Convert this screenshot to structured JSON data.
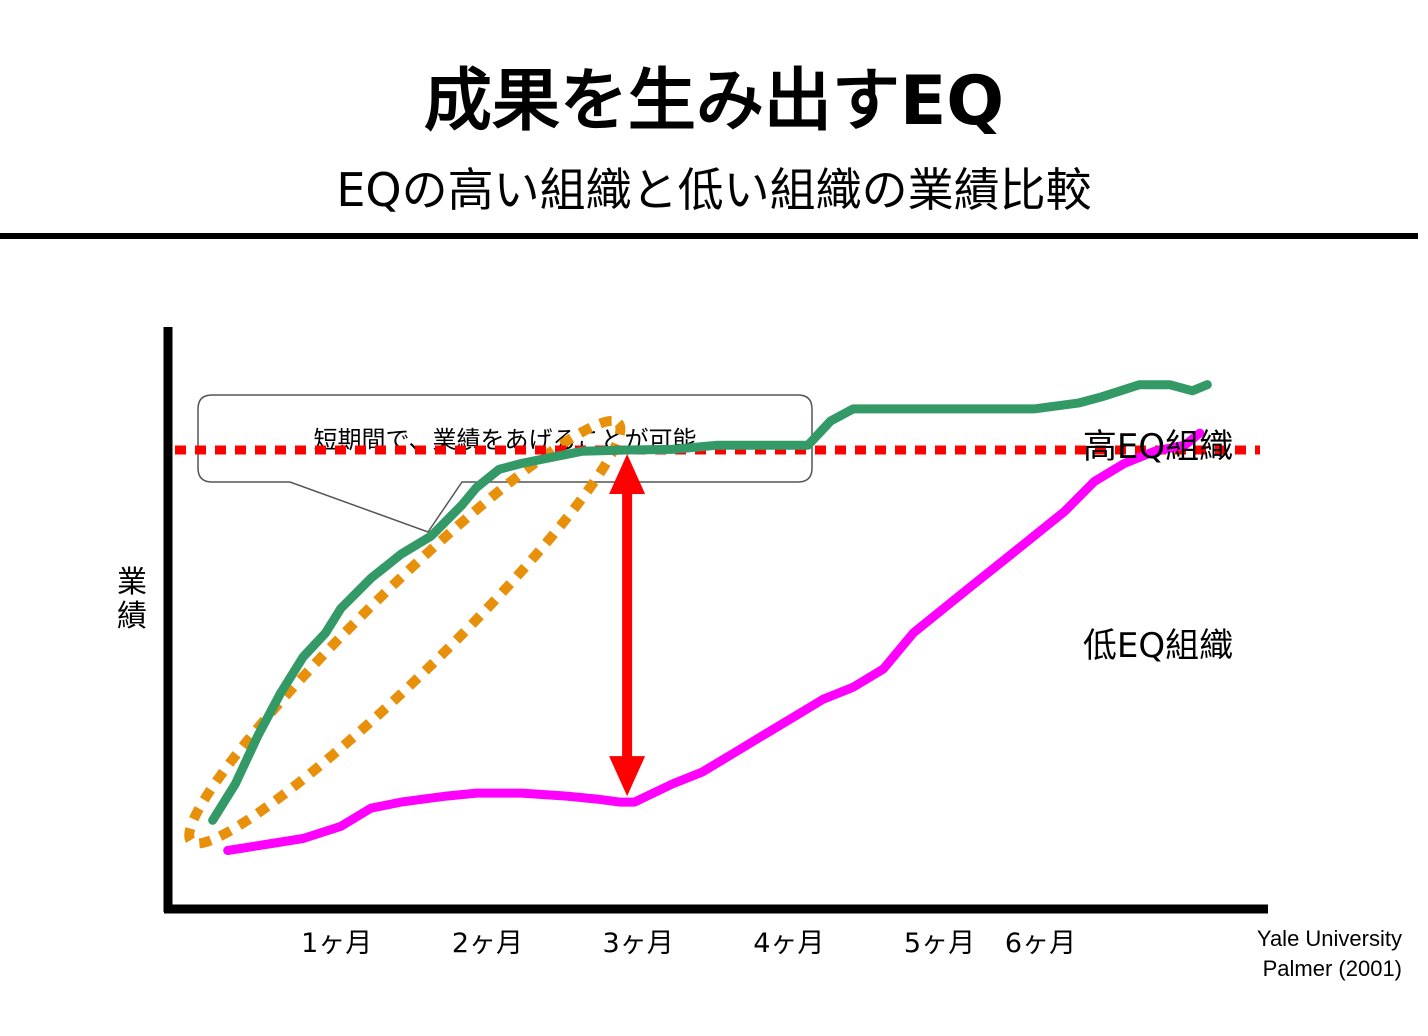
{
  "title": "成果を生み出すEQ",
  "subtitle": "EQの高い組織と低い組織の業績比較",
  "source_line1": "Yale University",
  "source_line2": "Palmer (2001)",
  "callout": "短期間で、業績をあげることが可能",
  "chart_data": {
    "type": "line",
    "title": "",
    "xlabel": "",
    "ylabel": "業績",
    "x_ticks": [
      "1ヶ月",
      "2ヶ月",
      "3ヶ月",
      "4ヶ月",
      "5ヶ月",
      "6ヶ月"
    ],
    "x_tick_positions": [
      1,
      2,
      3,
      4,
      5,
      5.67
    ],
    "xlim": [
      0,
      7.1
    ],
    "ylim": [
      0,
      100
    ],
    "grid": false,
    "legend": "inline labels at right",
    "series": [
      {
        "name": "高EQ組織",
        "color": "#339966",
        "x": [
          0.25,
          0.4,
          0.55,
          0.7,
          0.85,
          1.0,
          1.1,
          1.3,
          1.5,
          1.7,
          1.9,
          2.0,
          2.15,
          2.3,
          2.5,
          2.7,
          2.85,
          3.0,
          3.3,
          3.6,
          3.8,
          4.0,
          4.2,
          4.35,
          4.5,
          4.8,
          5.1,
          5.4,
          5.7,
          6.0,
          6.15,
          6.4,
          6.6,
          6.75,
          6.85
        ],
        "y": [
          14,
          20,
          28,
          35,
          41,
          45,
          49,
          54,
          58,
          61,
          66,
          69,
          72,
          73,
          74,
          75,
          75.1,
          75.2,
          75.3,
          76,
          76,
          76,
          76,
          80,
          82,
          82,
          82,
          82,
          82,
          83,
          84,
          86,
          86,
          85,
          86
        ]
      },
      {
        "name": "低EQ組織",
        "color": "#ff00ff",
        "x": [
          0.35,
          0.6,
          0.85,
          1.1,
          1.3,
          1.5,
          1.8,
          2.0,
          2.3,
          2.6,
          2.8,
          2.95,
          3.05,
          3.3,
          3.5,
          3.7,
          3.9,
          4.1,
          4.3,
          4.5,
          4.7,
          4.9,
          5.1,
          5.3,
          5.5,
          5.7,
          5.9,
          6.1,
          6.3,
          6.5,
          6.7,
          6.8
        ],
        "y": [
          9,
          10,
          11,
          13,
          16,
          17,
          18,
          18.5,
          18.5,
          18,
          17.5,
          17,
          17,
          20,
          22,
          25,
          28,
          31,
          34,
          36,
          39,
          45,
          49,
          53,
          57,
          61,
          65,
          70,
          73,
          75,
          76,
          78
        ]
      }
    ],
    "annotations": [
      {
        "type": "reference_line",
        "y": 75.2,
        "color": "#ff0000",
        "style": "dotted"
      },
      {
        "type": "double_arrow",
        "x": 3.0,
        "from": 17,
        "to": 75.2,
        "color": "#ff0000"
      },
      {
        "type": "ellipse_highlight",
        "color": "#e8900a",
        "x_from": 0.25,
        "x_to": 2.8
      }
    ]
  }
}
